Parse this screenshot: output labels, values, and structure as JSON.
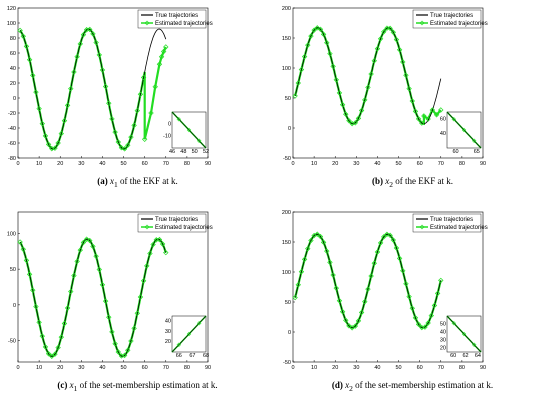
{
  "chart_data": [
    {
      "id": "a",
      "type": "line",
      "xlim": [
        0,
        90
      ],
      "ylim": [
        -80,
        120
      ],
      "xticks": [
        0,
        10,
        20,
        30,
        40,
        50,
        60,
        70,
        80,
        90
      ],
      "yticks": [
        -80,
        -60,
        -40,
        -20,
        0,
        20,
        40,
        60,
        80,
        100,
        120
      ],
      "curve": {
        "offset": 12,
        "amp": 80,
        "period": 33.5,
        "phase": 1.6,
        "xmin": 1,
        "xmax": 70
      },
      "estimate_tail": [
        [
          60,
          -55
        ],
        [
          63,
          -20
        ],
        [
          65,
          15
        ],
        [
          67,
          45
        ],
        [
          68,
          55
        ],
        [
          69,
          62
        ],
        [
          70,
          68
        ]
      ],
      "legend": [
        "True trajectories",
        "Estimated trajectories"
      ],
      "inset": {
        "xlim": [
          46,
          52
        ],
        "ylim": [
          -20,
          10
        ],
        "xticks": [
          46,
          48,
          50,
          52
        ],
        "yticks": [
          -10,
          0
        ]
      },
      "caption": {
        "label": "(a)",
        "var": "x",
        "sub": "1",
        "text": " of the EKF at k."
      }
    },
    {
      "id": "b",
      "type": "line",
      "xlim": [
        0,
        90
      ],
      "ylim": [
        -50,
        200
      ],
      "xticks": [
        0,
        10,
        20,
        30,
        40,
        50,
        60,
        70,
        80,
        90
      ],
      "yticks": [
        -50,
        0,
        50,
        100,
        150,
        200
      ],
      "curve": {
        "offset": 87,
        "amp": 80,
        "period": 33.5,
        "phase": -0.62,
        "xmin": 1,
        "xmax": 70
      },
      "estimate_tail": [
        [
          62,
          20
        ],
        [
          64,
          15
        ],
        [
          66,
          30
        ],
        [
          68,
          22
        ],
        [
          70,
          30
        ]
      ],
      "legend": [
        "True trajectories",
        "Estimated trajectories"
      ],
      "inset": {
        "xlim": [
          58,
          66
        ],
        "ylim": [
          20,
          70
        ],
        "xticks": [
          60,
          65
        ],
        "yticks": [
          40,
          60
        ]
      },
      "caption": {
        "label": "(b)",
        "var": "x",
        "sub": "2",
        "text": " of the EKF at k."
      }
    },
    {
      "id": "c",
      "type": "line",
      "xlim": [
        0,
        90
      ],
      "ylim": [
        -80,
        130
      ],
      "xticks": [
        0,
        10,
        20,
        30,
        40,
        50,
        60,
        70,
        80,
        90
      ],
      "yticks": [
        -50,
        0,
        50,
        100
      ],
      "curve": {
        "offset": 10,
        "amp": 82,
        "period": 33.5,
        "phase": 1.7,
        "xmin": 1,
        "xmax": 70
      },
      "estimate_tail": [],
      "legend": [
        "True trajectories",
        "Estimated trajectories"
      ],
      "inset": {
        "xlim": [
          65.5,
          68
        ],
        "ylim": [
          10,
          45
        ],
        "xticks": [
          66,
          67,
          68
        ],
        "yticks": [
          20,
          30,
          40
        ]
      },
      "caption": {
        "label": "(c)",
        "var": "x",
        "sub": "1",
        "text": " of the set-membership estimation at k."
      }
    },
    {
      "id": "d",
      "type": "line",
      "xlim": [
        0,
        90
      ],
      "ylim": [
        -50,
        200
      ],
      "xticks": [
        0,
        10,
        20,
        30,
        40,
        50,
        60,
        70,
        80,
        90
      ],
      "yticks": [
        -50,
        0,
        50,
        100,
        150,
        200
      ],
      "curve": {
        "offset": 85,
        "amp": 78,
        "period": 33.5,
        "phase": -0.55,
        "xmin": 1,
        "xmax": 70
      },
      "estimate_tail": [],
      "legend": [
        "True trajectories",
        "Estimated trajectories"
      ],
      "inset": {
        "xlim": [
          59,
          64.5
        ],
        "ylim": [
          15,
          60
        ],
        "xticks": [
          60,
          62,
          64
        ],
        "yticks": [
          20,
          30,
          40,
          50
        ]
      },
      "caption": {
        "label": "(d)",
        "var": "x",
        "sub": "2",
        "text": " of the set-membership estimation at k."
      }
    }
  ],
  "colors": {
    "true": "#000000",
    "estimated": "#22dd22",
    "frame": "#000000"
  }
}
